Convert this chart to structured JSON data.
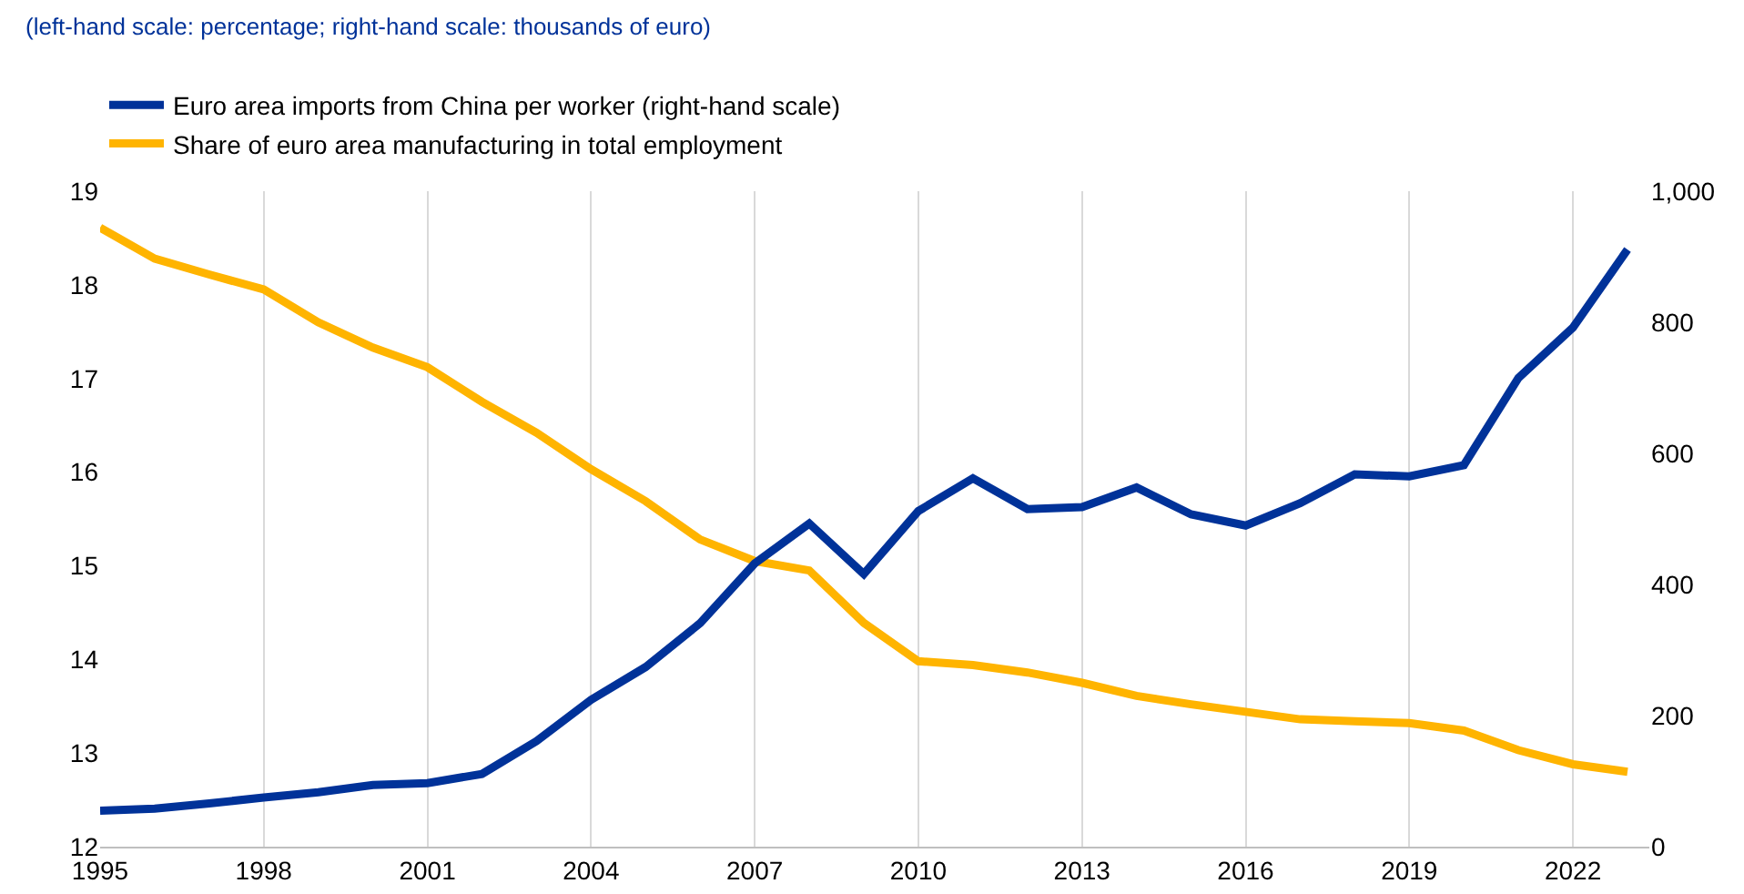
{
  "chart_data": {
    "type": "line",
    "subtitle": "(left-hand scale: percentage; right-hand scale: thousands of euro)",
    "x": [
      1995,
      1996,
      1997,
      1998,
      1999,
      2000,
      2001,
      2002,
      2003,
      2004,
      2005,
      2006,
      2007,
      2008,
      2009,
      2010,
      2011,
      2012,
      2013,
      2014,
      2015,
      2016,
      2017,
      2018,
      2019,
      2020,
      2021,
      2022,
      2023
    ],
    "series": [
      {
        "name": "Euro area imports from China per worker (right-hand scale)",
        "color": "#003299",
        "axis": "y2",
        "values": [
          55,
          58,
          66,
          75,
          83,
          94,
          97,
          111,
          161,
          224,
          274,
          341,
          432,
          493,
          416,
          512,
          562,
          515,
          518,
          548,
          507,
          490,
          524,
          568,
          565,
          582,
          715,
          792,
          911
        ]
      },
      {
        "name": "Share of euro area manufacturing in total employment",
        "color": "#ffb400",
        "values": [
          18.61,
          18.28,
          18.11,
          17.95,
          17.6,
          17.33,
          17.12,
          16.75,
          16.42,
          16.03,
          15.69,
          15.28,
          15.05,
          14.95,
          14.39,
          13.98,
          13.94,
          13.86,
          13.75,
          13.61,
          13.52,
          13.44,
          13.36,
          13.34,
          13.32,
          13.24,
          13.03,
          12.88,
          12.8
        ]
      }
    ],
    "xlim": [
      1995,
      2023.4
    ],
    "xticks": [
      1995,
      1998,
      2001,
      2004,
      2007,
      2010,
      2013,
      2016,
      2019,
      2022
    ],
    "ylim": [
      12,
      19
    ],
    "yticks": [
      12,
      13,
      14,
      15,
      16,
      17,
      18,
      19
    ],
    "y2lim": [
      0,
      1000
    ],
    "y2ticks": [
      0,
      200,
      400,
      600,
      800,
      {
        "value": 1000,
        "label": "1,000"
      }
    ],
    "grid": "x",
    "legend": "top left",
    "marker": "none",
    "line_style": "solid"
  }
}
